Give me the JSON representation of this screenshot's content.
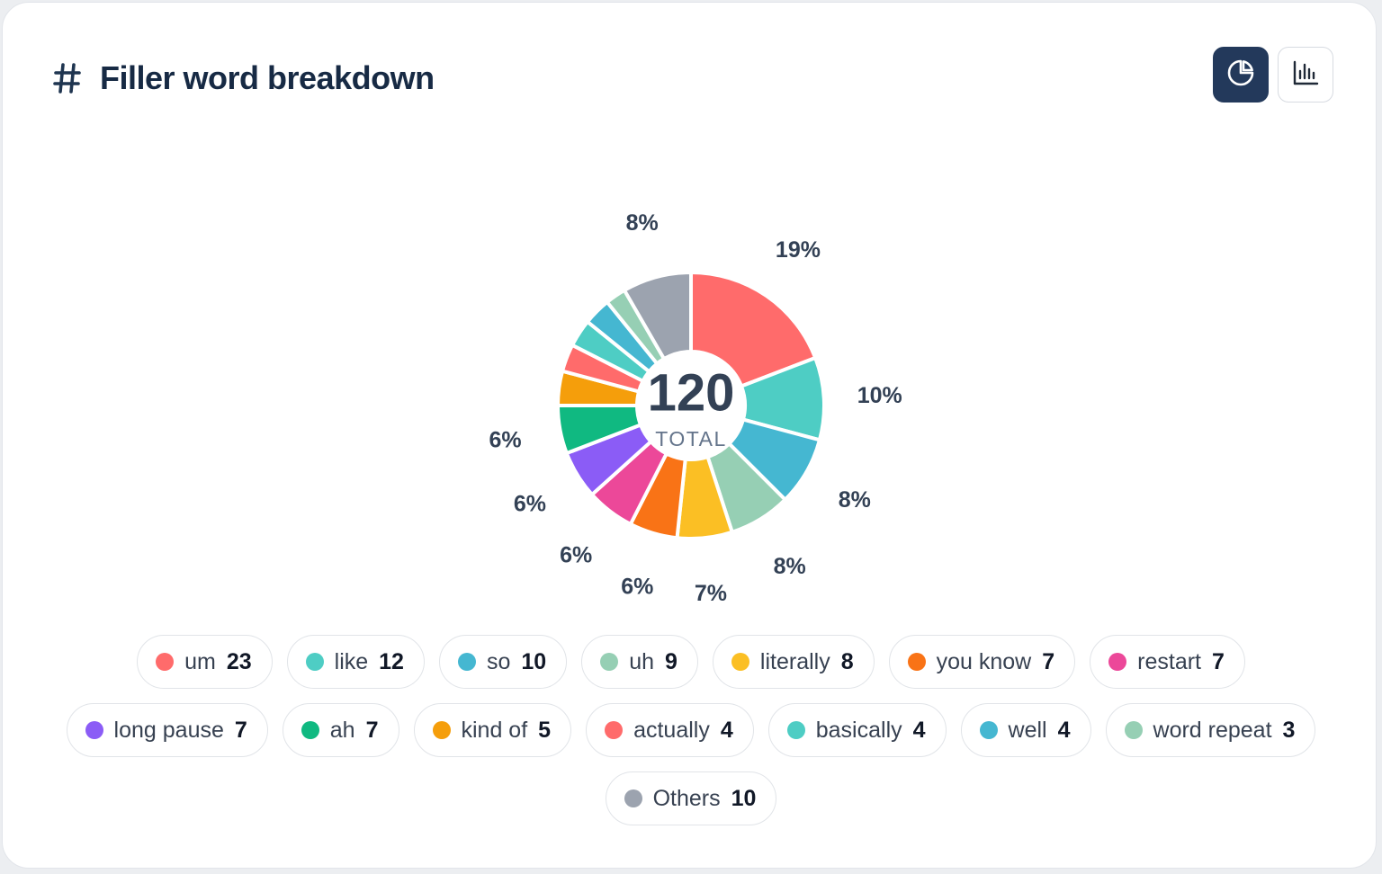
{
  "header": {
    "icon": "hash-icon",
    "title": "Filler word breakdown"
  },
  "view_toggle": {
    "active": "pie",
    "options": [
      {
        "name": "pie-chart-icon"
      },
      {
        "name": "bar-chart-icon"
      }
    ]
  },
  "chart_data": {
    "type": "pie",
    "variant": "donut",
    "center_value": "120",
    "center_label": "TOTAL",
    "categories": [
      "um",
      "like",
      "so",
      "uh",
      "literally",
      "you know",
      "restart",
      "long pause",
      "ah",
      "kind of",
      "actually",
      "basically",
      "well",
      "word repeat",
      "Others"
    ],
    "values": [
      23,
      12,
      10,
      9,
      8,
      7,
      7,
      7,
      7,
      5,
      4,
      4,
      4,
      3,
      10
    ],
    "percent_labels": [
      "19%",
      "10%",
      "8%",
      "8%",
      "7%",
      "6%",
      "6%",
      "6%",
      "6%",
      "",
      "",
      "",
      "",
      "",
      "8%"
    ],
    "colors": [
      "#ff6b6b",
      "#4ecdc4",
      "#45b7d1",
      "#96cfb4",
      "#fbbf24",
      "#f97316",
      "#ec4899",
      "#8b5cf6",
      "#10b981",
      "#f59e0b",
      "#ff6b6b",
      "#4ecdc4",
      "#45b7d1",
      "#96cfb4",
      "#9ca3af"
    ],
    "legend_position": "bottom"
  }
}
